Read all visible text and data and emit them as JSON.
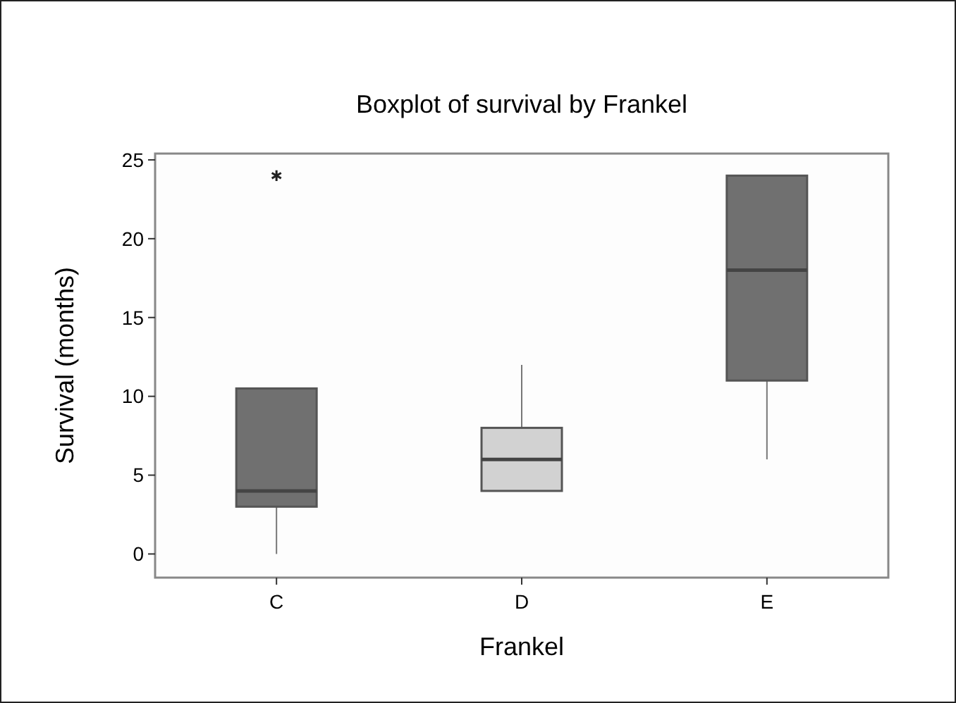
{
  "chart_data": {
    "type": "box",
    "title": "Boxplot of survival by Frankel",
    "xlabel": "Frankel",
    "ylabel": "Survival (months)",
    "categories": [
      "C",
      "D",
      "E"
    ],
    "boxes": [
      {
        "low": 0,
        "q1": 3,
        "median": 4,
        "q3": 10.5,
        "high": 10.5,
        "outliers": [
          24
        ]
      },
      {
        "low": 4,
        "q1": 4,
        "median": 6,
        "q3": 8,
        "high": 12
      },
      {
        "low": 6,
        "q1": 11,
        "median": 18,
        "q3": 24,
        "high": 24
      }
    ],
    "colors": [
      "#707070",
      "#d2d2d2",
      "#707070"
    ],
    "ylim": [
      -1.5,
      25.4
    ],
    "yticks": [
      0,
      5,
      10,
      15,
      20,
      25
    ],
    "grid": false,
    "marker": "star"
  }
}
